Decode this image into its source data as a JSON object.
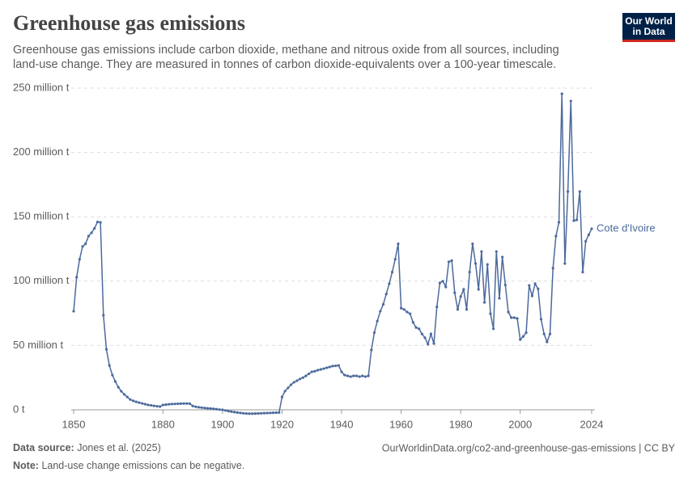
{
  "header": {
    "logo": [
      "Our World",
      "in Data"
    ]
  },
  "chart_data": {
    "type": "line",
    "title": "Greenhouse gas emissions",
    "subtitle": [
      "Greenhouse gas emissions include carbon dioxide, methane and nitrous oxide from all sources, including",
      "land-use change. They are measured in tonnes of carbon dioxide-equivalents over a 100-year timescale."
    ],
    "x": [
      1850,
      1851,
      1852,
      1853,
      1854,
      1855,
      1856,
      1857,
      1858,
      1859,
      1860,
      1861,
      1862,
      1863,
      1864,
      1865,
      1866,
      1867,
      1868,
      1869,
      1870,
      1871,
      1872,
      1873,
      1874,
      1875,
      1876,
      1877,
      1878,
      1879,
      1880,
      1881,
      1882,
      1883,
      1884,
      1885,
      1886,
      1887,
      1888,
      1889,
      1890,
      1891,
      1892,
      1893,
      1894,
      1895,
      1896,
      1897,
      1898,
      1899,
      1900,
      1901,
      1902,
      1903,
      1904,
      1905,
      1906,
      1907,
      1908,
      1909,
      1910,
      1911,
      1912,
      1913,
      1914,
      1915,
      1916,
      1917,
      1918,
      1919,
      1920,
      1921,
      1922,
      1923,
      1924,
      1925,
      1926,
      1927,
      1928,
      1929,
      1930,
      1931,
      1932,
      1933,
      1934,
      1935,
      1936,
      1937,
      1938,
      1939,
      1940,
      1941,
      1942,
      1943,
      1944,
      1945,
      1946,
      1947,
      1948,
      1949,
      1950,
      1951,
      1952,
      1953,
      1954,
      1955,
      1956,
      1957,
      1958,
      1959,
      1960,
      1961,
      1962,
      1963,
      1964,
      1965,
      1966,
      1967,
      1968,
      1969,
      1970,
      1971,
      1972,
      1973,
      1974,
      1975,
      1976,
      1977,
      1978,
      1979,
      1980,
      1981,
      1982,
      1983,
      1984,
      1985,
      1986,
      1987,
      1988,
      1989,
      1990,
      1991,
      1992,
      1993,
      1994,
      1995,
      1996,
      1997,
      1998,
      1999,
      2000,
      2001,
      2002,
      2003,
      2004,
      2005,
      2006,
      2007,
      2008,
      2009,
      2010,
      2011,
      2012,
      2013,
      2014,
      2015,
      2016,
      2017,
      2018,
      2019,
      2020,
      2021,
      2022,
      2023,
      2024
    ],
    "series": [
      {
        "name": "Cote d'Ivoire",
        "color": "#4c6a9c",
        "values": [
          76.6,
          103,
          117,
          127,
          129,
          135,
          137.6,
          141,
          146,
          145.7,
          73.5,
          47,
          34.5,
          27,
          22,
          17.6,
          14.4,
          12,
          10,
          8,
          7,
          6.2,
          5.6,
          5,
          4.4,
          3.8,
          3.5,
          3.1,
          2.8,
          2.5,
          3.8,
          4,
          4.3,
          4.5,
          4.6,
          4.7,
          4.8,
          4.9,
          4.9,
          4.8,
          3,
          2.4,
          2,
          1.7,
          1.4,
          1.2,
          1,
          0.8,
          0.5,
          0.2,
          0,
          -0.5,
          -1,
          -1.4,
          -1.8,
          -2.1,
          -2.4,
          -2.7,
          -2.9,
          -3,
          -3,
          -2.9,
          -2.8,
          -2.7,
          -2.6,
          -2.5,
          -2.4,
          -2.3,
          -2.2,
          -2.1,
          10,
          14.5,
          17,
          19.5,
          21.4,
          22.6,
          24,
          25,
          26.4,
          28,
          29.5,
          30,
          30.8,
          31.4,
          32,
          32.7,
          33.3,
          34,
          34.2,
          34.5,
          29.5,
          27,
          26.4,
          25.8,
          26.4,
          26.4,
          25.8,
          26.4,
          25.8,
          26.4,
          46.5,
          60,
          69,
          76.6,
          82,
          90,
          98,
          107,
          117,
          129,
          79,
          78,
          76,
          74.7,
          68,
          64,
          63,
          59,
          56,
          51,
          59,
          51.5,
          80,
          98.6,
          100,
          95.5,
          115,
          116,
          91,
          78,
          88,
          93.6,
          78,
          107,
          129,
          113.7,
          93.6,
          123,
          83.5,
          113,
          74.7,
          63,
          123,
          86.7,
          118.7,
          97,
          76,
          71.6,
          71.6,
          71,
          54.6,
          57,
          60,
          96.7,
          88.6,
          98,
          94,
          70.4,
          59,
          52.8,
          59,
          110,
          135,
          145.7,
          245.6,
          113.7,
          169.6,
          240,
          147,
          147.6,
          169.6,
          107,
          131,
          136,
          140.7
        ]
      }
    ],
    "xlim": [
      1850,
      2024
    ],
    "xticks": [
      1850,
      1880,
      1900,
      1920,
      1940,
      1960,
      1980,
      2000,
      2024
    ],
    "ylim": [
      0,
      250
    ],
    "yticks": [
      {
        "value": 0,
        "label": "0 t"
      },
      {
        "value": 50,
        "label": "50 million t"
      },
      {
        "value": 100,
        "label": "100 million t"
      },
      {
        "value": 150,
        "label": "150 million t"
      },
      {
        "value": 200,
        "label": "200 million t"
      },
      {
        "value": 250,
        "label": "250 million t"
      }
    ],
    "grid": true
  },
  "footer": {
    "source_label": "Data source:",
    "source": "Jones et al. (2025)",
    "url": "OurWorldinData.org/co2-and-greenhouse-gas-emissions | CC BY",
    "note_label": "Note:",
    "note": "Land-use change emissions can be negative."
  }
}
